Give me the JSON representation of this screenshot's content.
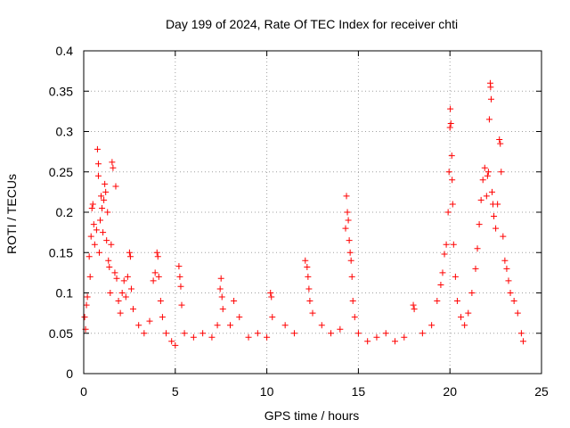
{
  "chart_data": {
    "type": "scatter",
    "title": "Day 199 of 2024, Rate Of TEC Index for receiver chti",
    "xlabel": "GPS time / hours",
    "ylabel": "ROTI / TECUs",
    "xlim": [
      0,
      25
    ],
    "ylim": [
      0,
      0.4
    ],
    "xticks": [
      0,
      5,
      10,
      15,
      20,
      25
    ],
    "xtick_labels": [
      "0",
      "5",
      "10",
      "15",
      "20",
      "25"
    ],
    "yticks": [
      0,
      0.05,
      0.1,
      0.15,
      0.2,
      0.25,
      0.3,
      0.35,
      0.4
    ],
    "ytick_labels": [
      "0",
      "0.05",
      "0.1",
      "0.15",
      "0.2",
      "0.25",
      "0.3",
      "0.35",
      "0.4"
    ],
    "grid": true,
    "marker": "+",
    "colors": {
      "series": "#ff0000",
      "axes": "#000000",
      "grid": "#a0a0a0"
    },
    "series": [
      {
        "name": "ROTI",
        "points": [
          [
            0.05,
            0.07
          ],
          [
            0.1,
            0.055
          ],
          [
            0.15,
            0.085
          ],
          [
            0.2,
            0.095
          ],
          [
            0.3,
            0.145
          ],
          [
            0.35,
            0.12
          ],
          [
            0.4,
            0.17
          ],
          [
            0.45,
            0.205
          ],
          [
            0.5,
            0.21
          ],
          [
            0.55,
            0.185
          ],
          [
            0.6,
            0.16
          ],
          [
            0.7,
            0.178
          ],
          [
            0.75,
            0.278
          ],
          [
            0.8,
            0.26
          ],
          [
            0.8,
            0.245
          ],
          [
            0.85,
            0.15
          ],
          [
            0.9,
            0.19
          ],
          [
            0.95,
            0.22
          ],
          [
            1.0,
            0.205
          ],
          [
            1.05,
            0.175
          ],
          [
            1.1,
            0.215
          ],
          [
            1.15,
            0.235
          ],
          [
            1.2,
            0.225
          ],
          [
            1.25,
            0.165
          ],
          [
            1.3,
            0.2
          ],
          [
            1.35,
            0.14
          ],
          [
            1.4,
            0.132
          ],
          [
            1.45,
            0.1
          ],
          [
            1.5,
            0.16
          ],
          [
            1.55,
            0.262
          ],
          [
            1.6,
            0.255
          ],
          [
            1.7,
            0.125
          ],
          [
            1.75,
            0.232
          ],
          [
            1.8,
            0.118
          ],
          [
            1.9,
            0.09
          ],
          [
            2.0,
            0.075
          ],
          [
            2.1,
            0.1
          ],
          [
            2.2,
            0.115
          ],
          [
            2.3,
            0.095
          ],
          [
            2.4,
            0.12
          ],
          [
            2.5,
            0.15
          ],
          [
            2.55,
            0.145
          ],
          [
            2.6,
            0.105
          ],
          [
            2.7,
            0.08
          ],
          [
            3.0,
            0.06
          ],
          [
            3.3,
            0.05
          ],
          [
            3.6,
            0.065
          ],
          [
            3.8,
            0.115
          ],
          [
            3.9,
            0.125
          ],
          [
            4.0,
            0.15
          ],
          [
            4.05,
            0.145
          ],
          [
            4.1,
            0.12
          ],
          [
            4.2,
            0.09
          ],
          [
            4.3,
            0.07
          ],
          [
            4.5,
            0.05
          ],
          [
            4.8,
            0.04
          ],
          [
            5.0,
            0.035
          ],
          [
            5.2,
            0.133
          ],
          [
            5.25,
            0.12
          ],
          [
            5.3,
            0.108
          ],
          [
            5.35,
            0.085
          ],
          [
            5.5,
            0.05
          ],
          [
            6.0,
            0.045
          ],
          [
            6.5,
            0.05
          ],
          [
            7.0,
            0.045
          ],
          [
            7.3,
            0.06
          ],
          [
            7.45,
            0.105
          ],
          [
            7.5,
            0.118
          ],
          [
            7.55,
            0.095
          ],
          [
            7.6,
            0.08
          ],
          [
            8.0,
            0.06
          ],
          [
            8.2,
            0.09
          ],
          [
            8.5,
            0.07
          ],
          [
            9.0,
            0.045
          ],
          [
            9.5,
            0.05
          ],
          [
            10.0,
            0.045
          ],
          [
            10.2,
            0.1
          ],
          [
            10.25,
            0.095
          ],
          [
            10.3,
            0.07
          ],
          [
            11.0,
            0.06
          ],
          [
            11.5,
            0.05
          ],
          [
            12.1,
            0.14
          ],
          [
            12.2,
            0.132
          ],
          [
            12.25,
            0.12
          ],
          [
            12.3,
            0.105
          ],
          [
            12.35,
            0.09
          ],
          [
            12.5,
            0.075
          ],
          [
            13.0,
            0.06
          ],
          [
            13.5,
            0.05
          ],
          [
            14.0,
            0.055
          ],
          [
            14.3,
            0.18
          ],
          [
            14.35,
            0.22
          ],
          [
            14.4,
            0.2
          ],
          [
            14.45,
            0.19
          ],
          [
            14.5,
            0.165
          ],
          [
            14.55,
            0.15
          ],
          [
            14.6,
            0.14
          ],
          [
            14.65,
            0.12
          ],
          [
            14.7,
            0.09
          ],
          [
            14.8,
            0.07
          ],
          [
            15.0,
            0.05
          ],
          [
            15.5,
            0.04
          ],
          [
            16.0,
            0.045
          ],
          [
            16.5,
            0.05
          ],
          [
            17.0,
            0.04
          ],
          [
            17.5,
            0.045
          ],
          [
            18.0,
            0.085
          ],
          [
            18.05,
            0.08
          ],
          [
            18.5,
            0.05
          ],
          [
            19.0,
            0.06
          ],
          [
            19.3,
            0.09
          ],
          [
            19.5,
            0.11
          ],
          [
            19.6,
            0.125
          ],
          [
            19.7,
            0.148
          ],
          [
            19.8,
            0.16
          ],
          [
            19.9,
            0.2
          ],
          [
            19.95,
            0.25
          ],
          [
            20.0,
            0.305
          ],
          [
            20.02,
            0.328
          ],
          [
            20.05,
            0.31
          ],
          [
            20.1,
            0.27
          ],
          [
            20.12,
            0.24
          ],
          [
            20.15,
            0.21
          ],
          [
            20.2,
            0.16
          ],
          [
            20.3,
            0.12
          ],
          [
            20.4,
            0.09
          ],
          [
            20.6,
            0.07
          ],
          [
            20.8,
            0.06
          ],
          [
            21.0,
            0.075
          ],
          [
            21.2,
            0.1
          ],
          [
            21.4,
            0.13
          ],
          [
            21.5,
            0.155
          ],
          [
            21.6,
            0.185
          ],
          [
            21.7,
            0.215
          ],
          [
            21.8,
            0.24
          ],
          [
            21.9,
            0.255
          ],
          [
            22.0,
            0.22
          ],
          [
            22.05,
            0.245
          ],
          [
            22.1,
            0.25
          ],
          [
            22.15,
            0.315
          ],
          [
            22.2,
            0.36
          ],
          [
            22.22,
            0.355
          ],
          [
            22.25,
            0.34
          ],
          [
            22.3,
            0.225
          ],
          [
            22.35,
            0.21
          ],
          [
            22.4,
            0.195
          ],
          [
            22.5,
            0.18
          ],
          [
            22.6,
            0.21
          ],
          [
            22.7,
            0.29
          ],
          [
            22.75,
            0.285
          ],
          [
            22.8,
            0.25
          ],
          [
            22.9,
            0.17
          ],
          [
            23.0,
            0.14
          ],
          [
            23.1,
            0.13
          ],
          [
            23.2,
            0.115
          ],
          [
            23.3,
            0.1
          ],
          [
            23.5,
            0.09
          ],
          [
            23.7,
            0.075
          ],
          [
            23.9,
            0.05
          ],
          [
            24.0,
            0.04
          ]
        ]
      }
    ]
  }
}
